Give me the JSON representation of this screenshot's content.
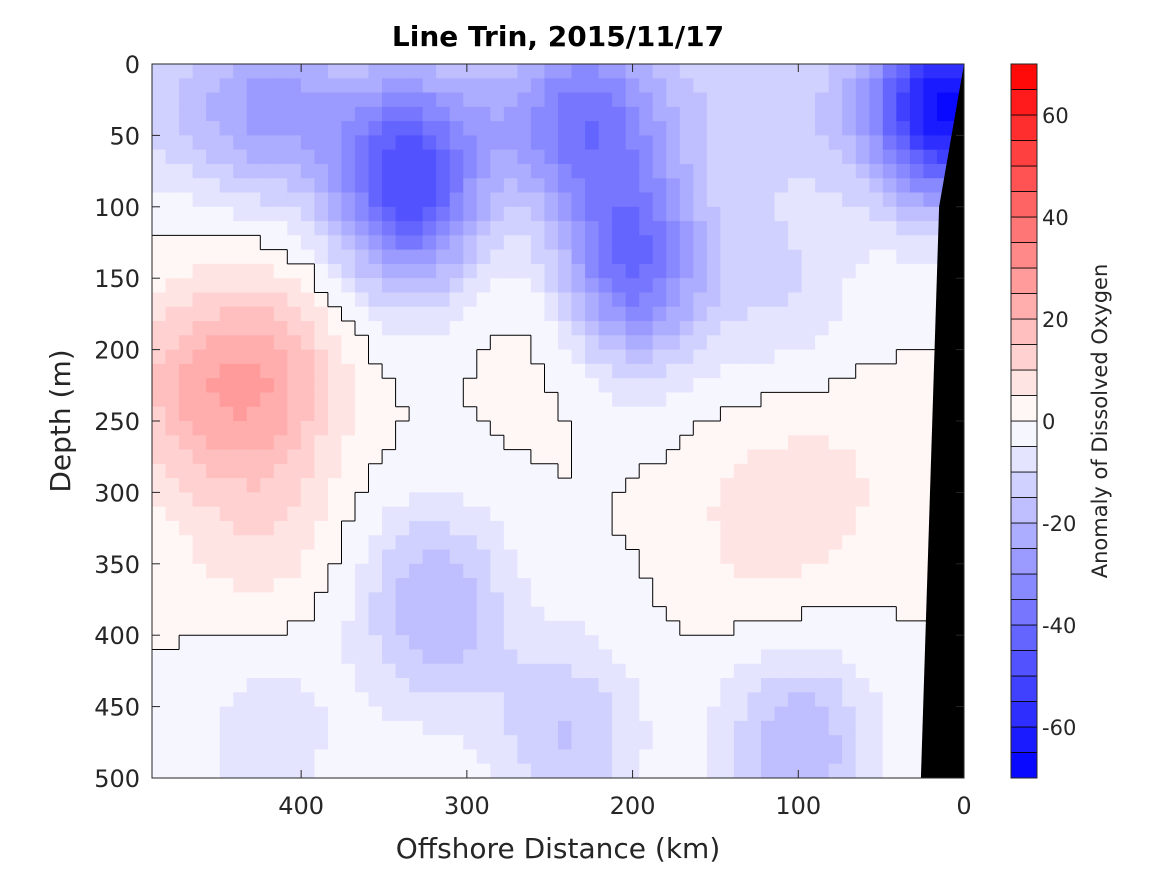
{
  "chart_data": {
    "type": "heatmap",
    "title": "Line Trin, 2015/11/17",
    "xlabel": "Offshore Distance (km)",
    "ylabel": "Depth (m)",
    "xlim": [
      490,
      0
    ],
    "ylim": [
      0,
      500
    ],
    "x_reversed": true,
    "y_reversed": true,
    "x_ticks": [
      400,
      300,
      200,
      100,
      0
    ],
    "y_ticks": [
      0,
      50,
      100,
      150,
      200,
      250,
      300,
      350,
      400,
      450,
      500
    ],
    "colorbar": {
      "label": "Anomaly of Dissolved Oxygen",
      "range": [
        -70,
        70
      ],
      "level_step": 5,
      "ticks": [
        60,
        40,
        20,
        0,
        -20,
        -40,
        -60
      ],
      "low_color": "#0000ff",
      "mid_color": "#ffffff",
      "high_color": "#ff0000"
    },
    "zero_contour_color": "#000000",
    "bathymetry_mask": {
      "color": "#000000",
      "polygon": [
        [
          0,
          0
        ],
        [
          0,
          500
        ],
        [
          26,
          500
        ],
        [
          15,
          100
        ],
        [
          0,
          0
        ]
      ]
    },
    "anomaly_features": [
      {
        "x": 335,
        "y": 90,
        "value": -45
      },
      {
        "x": 200,
        "y": 140,
        "value": -40
      },
      {
        "x": 10,
        "y": 30,
        "value": -55
      },
      {
        "x": 230,
        "y": 40,
        "value": -25
      },
      {
        "x": 420,
        "y": 220,
        "value": 20
      },
      {
        "x": 470,
        "y": 230,
        "value": 15
      },
      {
        "x": 425,
        "y": 330,
        "value": 8
      },
      {
        "x": 250,
        "y": 180,
        "value": 4
      },
      {
        "x": 120,
        "y": 320,
        "value": 8
      },
      {
        "x": 70,
        "y": 290,
        "value": 4
      },
      {
        "x": 320,
        "y": 380,
        "value": -20
      },
      {
        "x": 240,
        "y": 470,
        "value": -15
      },
      {
        "x": 100,
        "y": 480,
        "value": -20
      },
      {
        "x": 420,
        "y": 30,
        "value": -15
      },
      {
        "x": 110,
        "y": 150,
        "value": -10
      },
      {
        "x": 420,
        "y": 470,
        "value": -8
      }
    ]
  }
}
